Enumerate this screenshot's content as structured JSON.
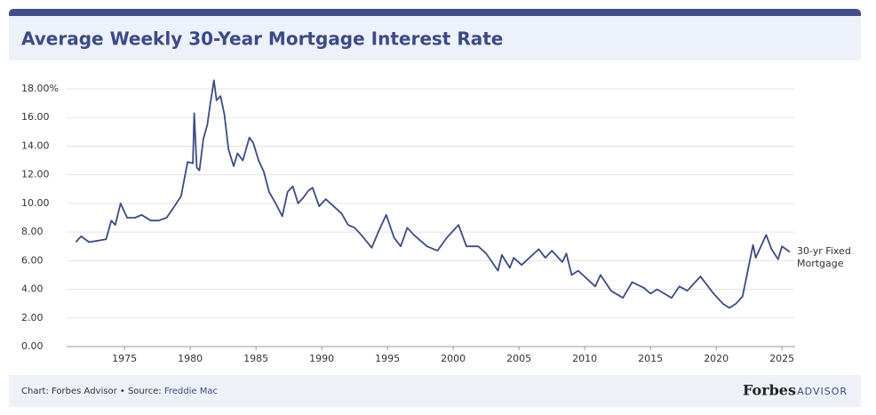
{
  "title": "Average Weekly 30-Year Mortgage Interest Rate",
  "footer": {
    "credit": "Chart: Forbes Advisor • Source:",
    "source": "Freddie Mac",
    "brand": "Forbes",
    "brand_sub": "ADVISOR"
  },
  "chart_data": {
    "type": "line",
    "x": [
      1971.3,
      1971.7,
      1972.3,
      1973.0,
      1973.6,
      1974.0,
      1974.3,
      1974.7,
      1975.2,
      1975.8,
      1976.3,
      1977.0,
      1977.6,
      1978.2,
      1978.8,
      1979.3,
      1979.8,
      1980.2,
      1980.3,
      1980.5,
      1980.7,
      1981.0,
      1981.3,
      1981.5,
      1981.8,
      1982.0,
      1982.3,
      1982.6,
      1982.9,
      1983.3,
      1983.6,
      1984.0,
      1984.5,
      1984.8,
      1985.2,
      1985.6,
      1986.0,
      1986.5,
      1987.0,
      1987.4,
      1987.8,
      1988.2,
      1988.6,
      1989.0,
      1989.3,
      1989.8,
      1990.3,
      1990.9,
      1991.5,
      1992.0,
      1992.5,
      1993.0,
      1993.8,
      1994.3,
      1994.9,
      1995.5,
      1996.0,
      1996.5,
      1997.0,
      1998.0,
      1998.8,
      1999.5,
      2000.4,
      2001.0,
      2001.9,
      2002.5,
      2003.4,
      2003.7,
      2004.3,
      2004.6,
      2005.2,
      2006.5,
      2007.0,
      2007.5,
      2008.3,
      2008.6,
      2009.0,
      2009.5,
      2010.8,
      2011.2,
      2012.0,
      2012.9,
      2013.6,
      2014.5,
      2015.0,
      2015.5,
      2016.6,
      2017.2,
      2017.8,
      2018.8,
      2019.8,
      2020.5,
      2021.0,
      2021.5,
      2022.0,
      2022.4,
      2022.8,
      2023.0,
      2023.8,
      2024.2,
      2024.7,
      2025.0,
      2025.3,
      2025.6
    ],
    "series": [
      {
        "name": "30-yr Fixed Mortgage",
        "color": "#3b4a8c",
        "values": [
          7.3,
          7.7,
          7.3,
          7.4,
          7.5,
          8.8,
          8.5,
          10.0,
          9.0,
          9.0,
          9.2,
          8.8,
          8.8,
          9.0,
          9.8,
          10.5,
          12.9,
          12.8,
          16.3,
          12.5,
          12.3,
          14.5,
          15.5,
          16.8,
          18.6,
          17.2,
          17.5,
          16.2,
          13.8,
          12.6,
          13.5,
          13.0,
          14.6,
          14.2,
          13.0,
          12.2,
          10.8,
          10.0,
          9.1,
          10.8,
          11.2,
          10.0,
          10.4,
          10.9,
          11.1,
          9.8,
          10.3,
          9.8,
          9.3,
          8.5,
          8.3,
          7.8,
          6.9,
          8.0,
          9.2,
          7.6,
          7.0,
          8.3,
          7.8,
          7.0,
          6.7,
          7.6,
          8.5,
          7.0,
          7.0,
          6.5,
          5.3,
          6.4,
          5.5,
          6.2,
          5.7,
          6.8,
          6.2,
          6.7,
          5.9,
          6.5,
          5.0,
          5.3,
          4.2,
          5.0,
          3.9,
          3.4,
          4.5,
          4.1,
          3.7,
          4.0,
          3.4,
          4.2,
          3.9,
          4.9,
          3.7,
          3.0,
          2.7,
          3.0,
          3.5,
          5.3,
          7.1,
          6.2,
          7.8,
          6.8,
          6.1,
          7.0,
          6.8,
          6.6
        ]
      }
    ],
    "xlim": [
      1970.6,
      2026.0
    ],
    "xticks": [
      1975,
      1980,
      1985,
      1990,
      1995,
      2000,
      2005,
      2010,
      2015,
      2020,
      2025
    ],
    "ylim": [
      0,
      18
    ],
    "yticks": [
      {
        "value": 0,
        "label": "0.00"
      },
      {
        "value": 2,
        "label": "2.00"
      },
      {
        "value": 4,
        "label": "4.00"
      },
      {
        "value": 6,
        "label": "6.00"
      },
      {
        "value": 8,
        "label": "8.00"
      },
      {
        "value": 10,
        "label": "10.00"
      },
      {
        "value": 12,
        "label": "12.00"
      },
      {
        "value": 14,
        "label": "14.00"
      },
      {
        "value": 16,
        "label": "16.00"
      },
      {
        "value": 18,
        "label": "18.00%"
      }
    ],
    "grid": true
  }
}
